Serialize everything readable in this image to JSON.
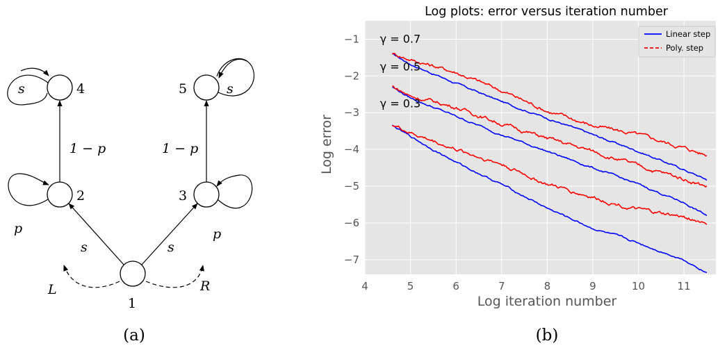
{
  "diagram": {
    "caption": "(a)",
    "nodes": [
      "4",
      "5",
      "2",
      "3",
      "1"
    ],
    "edge_labels": {
      "loop_4": "s",
      "loop_5": "s",
      "loop_2": "p",
      "loop_3": "p",
      "e_2_4": "1 − p",
      "e_3_5": "1 − p",
      "e_1_2": "s",
      "e_1_3": "s",
      "left": "L",
      "right": "R"
    }
  },
  "caption_b": "(b)",
  "chart_data": {
    "type": "line",
    "title": "Log plots: error versus iteration number",
    "xlabel": "Log iteration number",
    "ylabel": "Log error",
    "xlim": [
      4,
      11.7
    ],
    "ylim": [
      -7.4,
      -0.5
    ],
    "xticks": [
      4,
      5,
      6,
      7,
      8,
      9,
      10,
      11
    ],
    "yticks": [
      -7,
      -6,
      -5,
      -4,
      -3,
      -2,
      -1
    ],
    "grid": true,
    "legend": {
      "placement": "top-right",
      "entries": [
        {
          "label": "Linear step",
          "color": "#0000ff",
          "dash": "solid"
        },
        {
          "label": "Poly. step",
          "color": "#ff0000",
          "dash": "dashed"
        }
      ]
    },
    "annotations": [
      {
        "text": "γ = 0.7",
        "x": 4.33,
        "y": -1.1
      },
      {
        "text": "γ = 0.5",
        "x": 4.33,
        "y": -1.85
      },
      {
        "text": "γ = 0.3",
        "x": 4.33,
        "y": -2.85
      }
    ],
    "series": [
      {
        "name": "Linear step",
        "group": "γ = 0.7",
        "color": "#0000ff",
        "x": [
          4.6,
          5.0,
          6.0,
          7.0,
          8.0,
          9.0,
          10.0,
          11.0,
          11.5
        ],
        "y": [
          -1.4,
          -1.68,
          -2.2,
          -2.7,
          -3.15,
          -3.6,
          -4.05,
          -4.55,
          -4.82
        ]
      },
      {
        "name": "Poly. step",
        "group": "γ = 0.7",
        "color": "#ff0000",
        "x": [
          4.6,
          5.0,
          6.0,
          7.0,
          8.0,
          9.0,
          10.0,
          11.0,
          11.5
        ],
        "y": [
          -1.38,
          -1.55,
          -1.9,
          -2.4,
          -2.95,
          -3.35,
          -3.6,
          -3.95,
          -4.15
        ]
      },
      {
        "name": "Linear step",
        "group": "γ = 0.5",
        "color": "#0000ff",
        "x": [
          4.6,
          5.0,
          6.0,
          7.0,
          8.0,
          9.0,
          10.0,
          11.0,
          11.5
        ],
        "y": [
          -2.3,
          -2.6,
          -3.1,
          -3.6,
          -4.05,
          -4.5,
          -4.95,
          -5.45,
          -5.8
        ]
      },
      {
        "name": "Poly. step",
        "group": "γ = 0.5",
        "color": "#ff0000",
        "x": [
          4.6,
          5.0,
          6.0,
          7.0,
          8.0,
          9.0,
          10.0,
          11.0,
          11.5
        ],
        "y": [
          -2.28,
          -2.55,
          -2.85,
          -3.3,
          -3.7,
          -4.05,
          -4.45,
          -4.8,
          -5.0
        ]
      },
      {
        "name": "Linear step",
        "group": "γ = 0.3",
        "color": "#0000ff",
        "x": [
          4.6,
          5.0,
          6.0,
          7.0,
          8.0,
          9.0,
          10.0,
          11.0,
          11.5
        ],
        "y": [
          -3.35,
          -3.65,
          -4.35,
          -4.95,
          -5.6,
          -6.15,
          -6.55,
          -7.0,
          -7.35
        ]
      },
      {
        "name": "Poly. step",
        "group": "γ = 0.3",
        "color": "#ff0000",
        "x": [
          4.6,
          5.0,
          6.0,
          7.0,
          8.0,
          9.0,
          10.0,
          11.0,
          11.5
        ],
        "y": [
          -3.32,
          -3.55,
          -4.0,
          -4.4,
          -4.95,
          -5.3,
          -5.65,
          -5.85,
          -6.0
        ]
      }
    ]
  }
}
